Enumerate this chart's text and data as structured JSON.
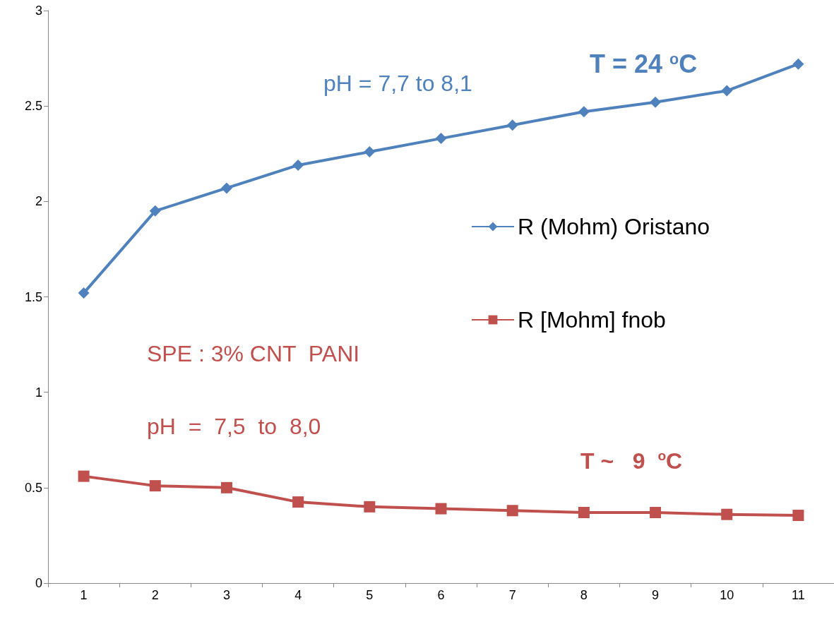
{
  "chart_data": {
    "type": "line",
    "categories": [
      "1",
      "2",
      "3",
      "4",
      "5",
      "6",
      "7",
      "8",
      "9",
      "10",
      "11"
    ],
    "series": [
      {
        "name": "R (Mohm) Oristano",
        "color": "#4f81bd",
        "marker": "diamond",
        "values": [
          1.52,
          1.95,
          2.07,
          2.19,
          2.26,
          2.33,
          2.4,
          2.47,
          2.52,
          2.58,
          2.72
        ]
      },
      {
        "name": "R [Mohm] fnob",
        "color": "#c0504d",
        "marker": "square",
        "values": [
          0.56,
          0.51,
          0.5,
          0.425,
          0.4,
          0.39,
          0.38,
          0.37,
          0.37,
          0.36,
          0.355
        ]
      }
    ],
    "ylim": [
      0,
      3
    ],
    "yticks": [
      0,
      0.5,
      1,
      1.5,
      2,
      2.5,
      3
    ],
    "grid": false,
    "legend": "right",
    "annotations": [
      "pH = 7,7 to 8,1",
      "T = 24 $^{o}$C",
      "SPE : 3% CNT  PANI",
      "pH  =  7,5  to  8,0",
      "T ~   9  $^{o}$C"
    ]
  }
}
